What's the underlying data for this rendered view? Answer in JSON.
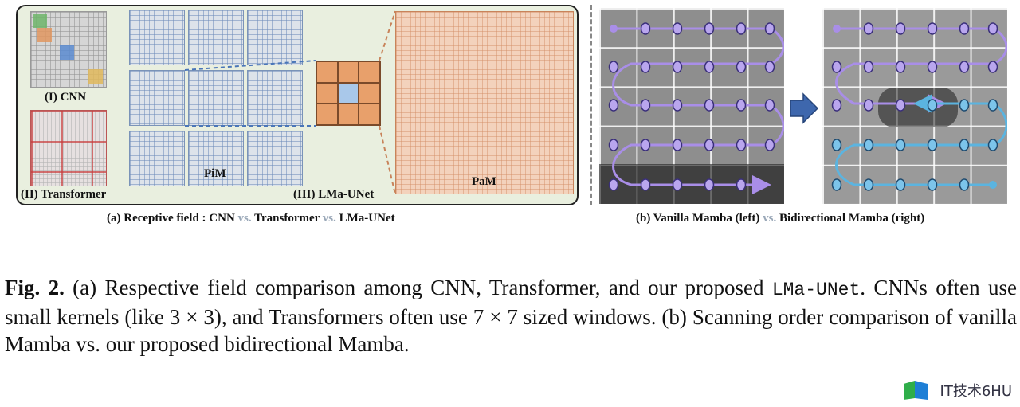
{
  "panel_a": {
    "label_cnn": "(I) CNN",
    "label_transformer": "(II) Transformer",
    "label_lma": "(III) LMa-UNet",
    "label_pim": "PiM",
    "label_pam": "PaM",
    "caption_prefix": "(a) Receptive field : CNN ",
    "caption_vs1": "vs.",
    "caption_mid": " Transformer ",
    "caption_vs2": "vs.",
    "caption_suffix": " LMa-UNet"
  },
  "panel_b": {
    "caption_prefix": "(b) Vanilla Mamba (left) ",
    "caption_vs": "vs.",
    "caption_suffix": " Bidirectional Mamba (right)"
  },
  "figure_caption": {
    "label": "Fig. 2.",
    "text1": " (a) Respective field comparison among CNN, Transformer, and our proposed ",
    "model": "LMa-UNet",
    "text2": ". CNNs often use small kernels (like 3 × 3), and Transformers often use 7 × 7 sized windows. (b) Scanning order comparison of vanilla Mamba vs. our proposed bidirectional Mamba."
  },
  "watermark": {
    "text": "IT技术6HU"
  },
  "colors": {
    "accent_blue": "#4a76b8",
    "accent_orange": "#e8a06b",
    "accent_purple": "#a98ee8",
    "accent_cyan": "#5bb4e0"
  }
}
